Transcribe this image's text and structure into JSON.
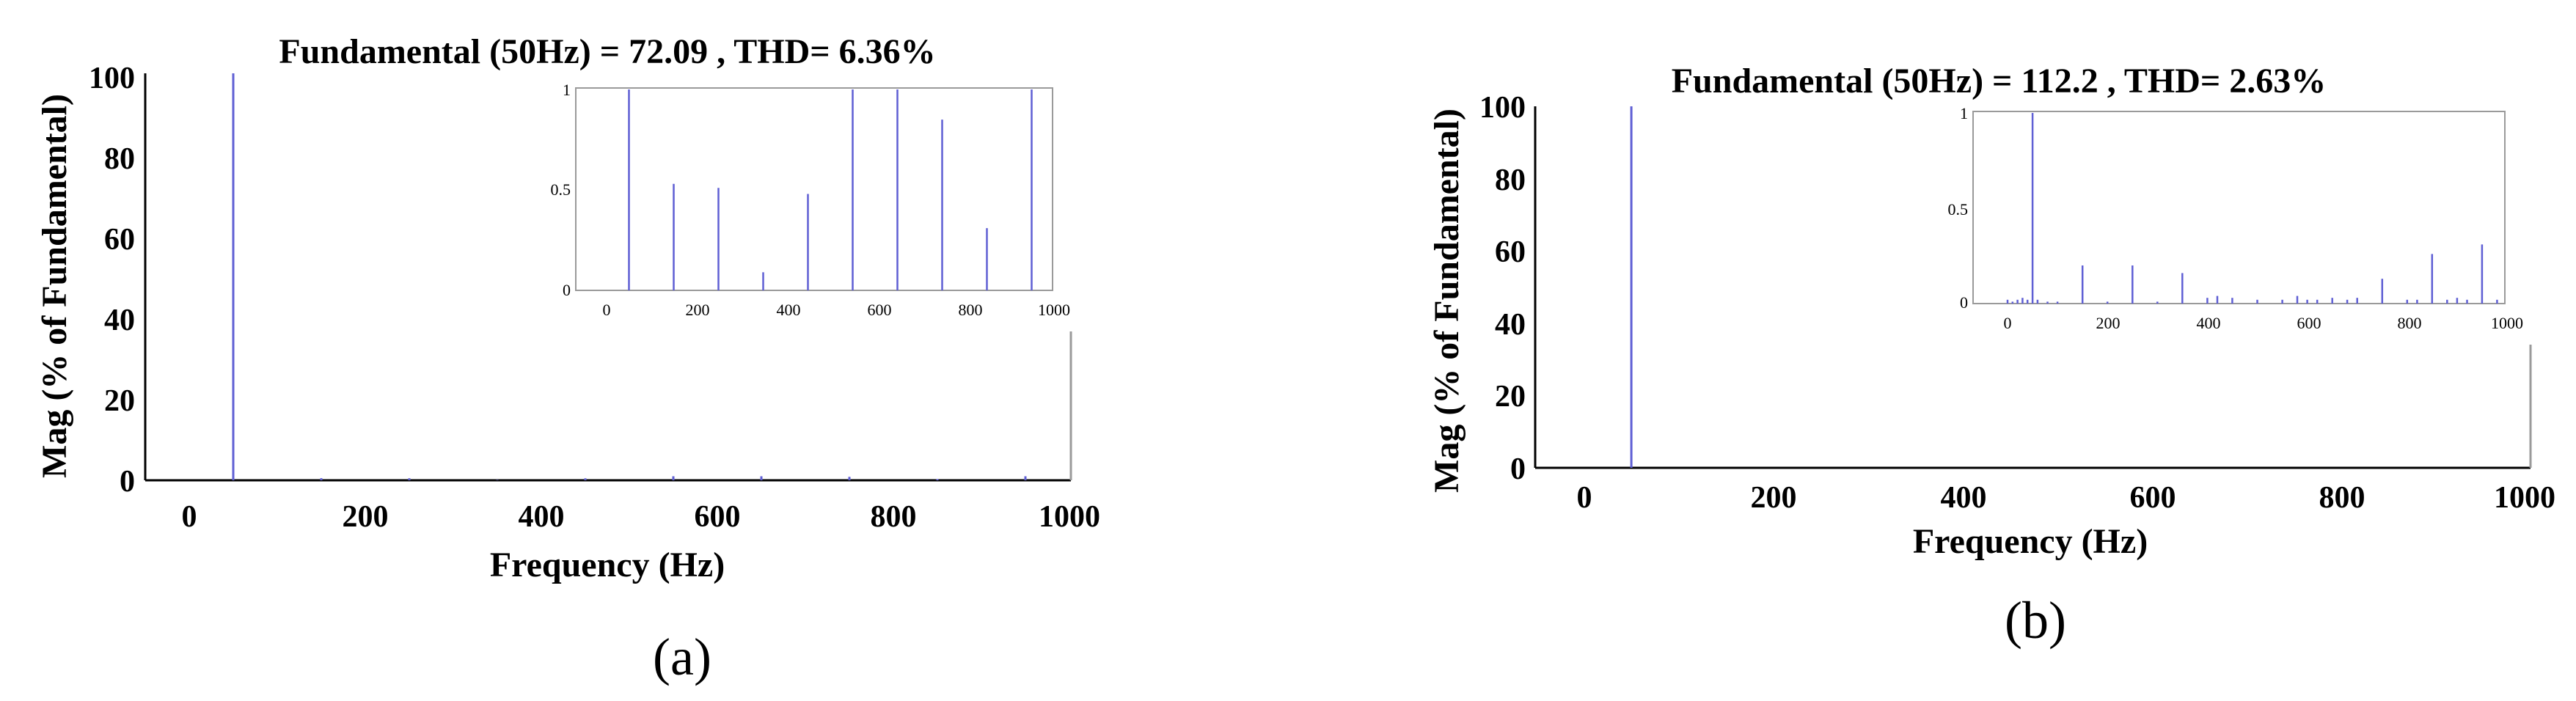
{
  "colors": {
    "series": "#5f5fd4",
    "axis": "#000000",
    "frame": "#9a9a9a",
    "background": "#ffffff"
  },
  "panels": [
    {
      "label": "(a)",
      "title": "Fundamental (50Hz) = 72.09 , THD= 6.36%",
      "xlabel": "Frequency (Hz)",
      "ylabel": "Mag (% of Fundamental)",
      "x_ticks": [
        "0",
        "200",
        "400",
        "600",
        "800",
        "1000"
      ],
      "y_ticks": [
        "0",
        "20",
        "40",
        "60",
        "80",
        "100"
      ],
      "inset_x_ticks": [
        "0",
        "200",
        "400",
        "600",
        "800",
        "1000"
      ],
      "inset_y_ticks": [
        "0",
        "0.5",
        "1"
      ]
    },
    {
      "label": "(b)",
      "title": "Fundamental (50Hz) = 112.2 , THD= 2.63%",
      "xlabel": "Frequency (Hz)",
      "ylabel": "Mag (% of Fundamental)",
      "x_ticks": [
        "0",
        "200",
        "400",
        "600",
        "800",
        "1000"
      ],
      "y_ticks": [
        "0",
        "20",
        "40",
        "60",
        "80",
        "100"
      ],
      "inset_x_ticks": [
        "0",
        "200",
        "400",
        "600",
        "800",
        "1000"
      ],
      "inset_y_ticks": [
        "0",
        "0.5",
        "1"
      ]
    }
  ],
  "chart_data": [
    {
      "type": "bar",
      "panel": "a",
      "title": "Fundamental (50Hz) = 72.09 , THD= 6.36%",
      "xlabel": "Frequency (Hz)",
      "ylabel": "Mag (% of Fundamental)",
      "xlim": [
        -50,
        1000
      ],
      "ylim": [
        0,
        100
      ],
      "grid": false,
      "x": [
        50,
        150,
        250,
        350,
        450,
        550,
        650,
        750,
        850,
        950
      ],
      "values": [
        100,
        0.53,
        0.51,
        0.09,
        0.48,
        1.0,
        1.0,
        0.85,
        0.31,
        1.0
      ],
      "inset": {
        "xlim": [
          -50,
          1000
        ],
        "ylim": [
          0,
          1
        ],
        "x": [
          50,
          150,
          250,
          350,
          450,
          550,
          650,
          750,
          850,
          950
        ],
        "values": [
          1.0,
          0.53,
          0.51,
          0.09,
          0.48,
          1.0,
          1.0,
          0.85,
          0.31,
          1.0
        ]
      }
    },
    {
      "type": "bar",
      "panel": "b",
      "title": "Fundamental (50Hz) = 112.2 , THD= 2.63%",
      "xlabel": "Frequency (Hz)",
      "ylabel": "Mag (% of Fundamental)",
      "xlim": [
        -50,
        1000
      ],
      "ylim": [
        0,
        100
      ],
      "grid": false,
      "x": [
        50
      ],
      "values": [
        100
      ],
      "inset": {
        "xlim": [
          -50,
          1000
        ],
        "ylim": [
          0,
          1
        ],
        "x": [
          0,
          10,
          20,
          30,
          40,
          50,
          60,
          80,
          100,
          150,
          200,
          250,
          300,
          350,
          400,
          420,
          450,
          500,
          550,
          580,
          600,
          620,
          650,
          680,
          700,
          750,
          800,
          820,
          850,
          880,
          900,
          920,
          950,
          980
        ],
        "values": [
          0.02,
          0.01,
          0.02,
          0.03,
          0.02,
          1.0,
          0.02,
          0.01,
          0.01,
          0.2,
          0.01,
          0.2,
          0.01,
          0.16,
          0.03,
          0.04,
          0.03,
          0.02,
          0.02,
          0.04,
          0.02,
          0.02,
          0.03,
          0.02,
          0.03,
          0.13,
          0.02,
          0.02,
          0.26,
          0.02,
          0.03,
          0.02,
          0.31,
          0.02
        ]
      }
    }
  ]
}
